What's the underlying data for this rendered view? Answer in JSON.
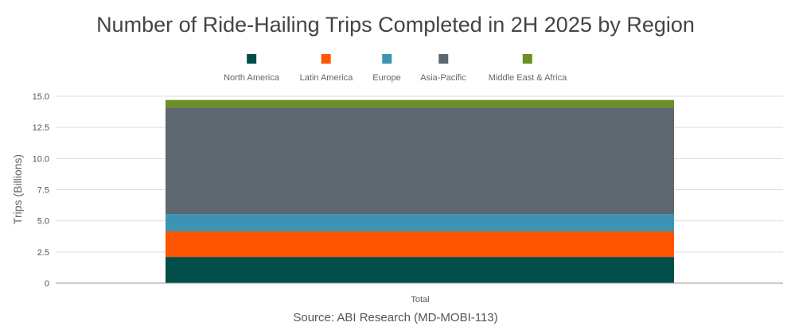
{
  "chart_data": {
    "type": "bar",
    "stacked": true,
    "title": "Number of Ride-Hailing Trips Completed in 2H 2025 by Region",
    "source": "Source: ABI Research (MD-MOBI-113)",
    "xlabel": "",
    "ylabel": "Trips (Billions)",
    "categories": [
      "Total"
    ],
    "ylim": [
      0,
      15
    ],
    "yticks": [
      "0",
      "2.5",
      "5.0",
      "7.5",
      "10.0",
      "12.5",
      "15.0"
    ],
    "grid": true,
    "legend_position": "top",
    "series": [
      {
        "name": "North America",
        "values": [
          2.1
        ],
        "color": "#004d4a"
      },
      {
        "name": "Latin America",
        "values": [
          2.05
        ],
        "color": "#ff5500"
      },
      {
        "name": "Europe",
        "values": [
          1.4
        ],
        "color": "#3d94b2"
      },
      {
        "name": "Asia-Pacific",
        "values": [
          8.55
        ],
        "color": "#5e6670"
      },
      {
        "name": "Middle East & Africa",
        "values": [
          0.6
        ],
        "color": "#6b8f22"
      }
    ]
  }
}
